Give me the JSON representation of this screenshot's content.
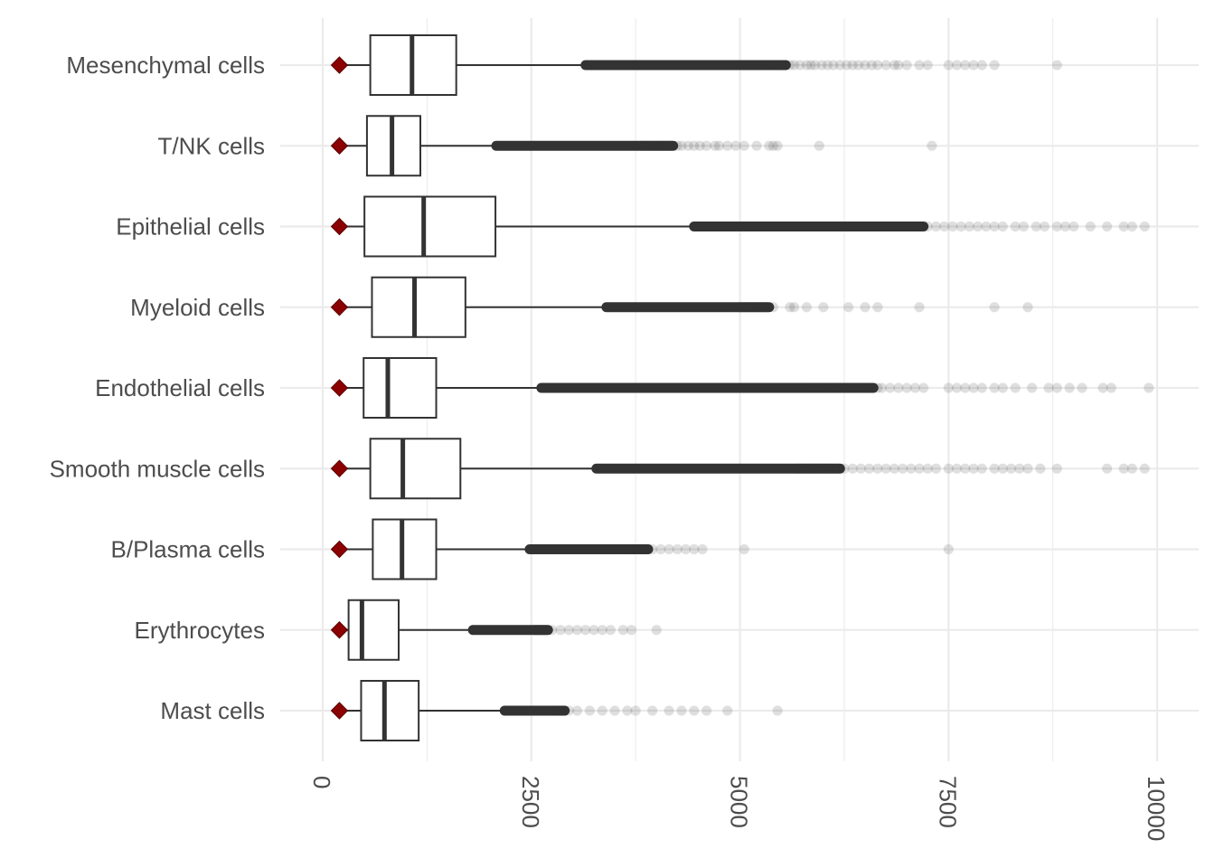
{
  "chart_data": {
    "type": "boxplot",
    "title": "",
    "xlabel": "",
    "ylabel": "",
    "orientation": "horizontal",
    "xlim": [
      -300,
      10200
    ],
    "x_ticks": [
      0,
      2500,
      5000,
      7500,
      10000
    ],
    "x_tick_labels": [
      "0",
      "2500",
      "5000",
      "7500",
      "10000"
    ],
    "x_tick_label_rotation": 90,
    "grid": true,
    "legend": "none",
    "colors": {
      "box_stroke": "#333333",
      "outlier": "#333333",
      "marker": "#8b0000",
      "grid": "#ebebeb"
    },
    "categories": [
      "Mesenchymal cells",
      "T/NK cells",
      "Epithelial cells",
      "Myeloid cells",
      "Endothelial cells",
      "Smooth muscle cells",
      "B/Plasma cells",
      "Erythrocytes",
      "Mast cells"
    ],
    "boxes": [
      {
        "category": "Mesenchymal cells",
        "whisker_low": 200,
        "q1": 570,
        "median": 1070,
        "q3": 1600,
        "whisker_high": 3150,
        "marker": 200,
        "outliers_dense": [
          3150,
          5550
        ],
        "outliers": [
          5600,
          5650,
          5720,
          5800,
          5850,
          5900,
          5980,
          6050,
          6120,
          6200,
          6280,
          6350,
          6420,
          6500,
          6580,
          6650,
          6750,
          6850,
          6900,
          7000,
          7150,
          7250,
          7500,
          7600,
          7700,
          7800,
          7900,
          8050,
          8800
        ]
      },
      {
        "category": "T/NK cells",
        "whisker_low": 200,
        "q1": 530,
        "median": 830,
        "q3": 1170,
        "whisker_high": 2080,
        "marker": 200,
        "outliers_dense": [
          2080,
          4200
        ],
        "outliers": [
          4250,
          4300,
          4380,
          4450,
          4520,
          4600,
          4700,
          4750,
          4850,
          4950,
          5050,
          5200,
          5350,
          5400,
          5450,
          5950,
          7300
        ]
      },
      {
        "category": "Epithelial cells",
        "whisker_low": 200,
        "q1": 500,
        "median": 1210,
        "q3": 2070,
        "whisker_high": 4450,
        "marker": 200,
        "outliers_dense": [
          4450,
          7200
        ],
        "outliers": [
          7250,
          7350,
          7450,
          7550,
          7650,
          7750,
          7850,
          7950,
          8050,
          8150,
          8300,
          8400,
          8550,
          8650,
          8800,
          8900,
          9000,
          9200,
          9400,
          9600,
          9700,
          9850
        ]
      },
      {
        "category": "Myeloid cells",
        "whisker_low": 200,
        "q1": 590,
        "median": 1100,
        "q3": 1710,
        "whisker_high": 3400,
        "marker": 200,
        "outliers_dense": [
          3400,
          5350
        ],
        "outliers": [
          5400,
          5600,
          5650,
          5800,
          6000,
          6300,
          6500,
          6650,
          7150,
          8050,
          8450
        ]
      },
      {
        "category": "Endothelial cells",
        "whisker_low": 200,
        "q1": 490,
        "median": 780,
        "q3": 1360,
        "whisker_high": 2620,
        "marker": 200,
        "outliers_dense": [
          2620,
          6600
        ],
        "outliers": [
          6650,
          6700,
          6800,
          6900,
          7000,
          7100,
          7200,
          7500,
          7600,
          7700,
          7800,
          7900,
          8050,
          8150,
          8300,
          8500,
          8700,
          8800,
          8950,
          9100,
          9350,
          9450,
          9900
        ]
      },
      {
        "category": "Smooth muscle cells",
        "whisker_low": 200,
        "q1": 570,
        "median": 960,
        "q3": 1650,
        "whisker_high": 3280,
        "marker": 200,
        "outliers_dense": [
          3280,
          6200
        ],
        "outliers": [
          6250,
          6350,
          6450,
          6550,
          6650,
          6750,
          6850,
          6950,
          7050,
          7150,
          7250,
          7350,
          7500,
          7600,
          7700,
          7800,
          7900,
          8050,
          8150,
          8250,
          8350,
          8450,
          8600,
          8800,
          9400,
          9600,
          9700,
          9850
        ]
      },
      {
        "category": "B/Plasma cells",
        "whisker_low": 200,
        "q1": 600,
        "median": 950,
        "q3": 1360,
        "whisker_high": 2480,
        "marker": 200,
        "outliers_dense": [
          2480,
          3900
        ],
        "outliers": [
          3950,
          4050,
          4150,
          4250,
          4350,
          4450,
          4550,
          5050,
          7500
        ]
      },
      {
        "category": "Erythrocytes",
        "whisker_low": 200,
        "q1": 310,
        "median": 470,
        "q3": 910,
        "whisker_high": 1800,
        "marker": 200,
        "outliers_dense": [
          1800,
          2700
        ],
        "outliers": [
          2750,
          2850,
          2950,
          3050,
          3150,
          3250,
          3350,
          3450,
          3600,
          3700,
          4000
        ]
      },
      {
        "category": "Mast cells",
        "whisker_low": 200,
        "q1": 460,
        "median": 740,
        "q3": 1150,
        "whisker_high": 2180,
        "marker": 200,
        "outliers_dense": [
          2180,
          2900
        ],
        "outliers": [
          2950,
          3050,
          3200,
          3350,
          3500,
          3650,
          3750,
          3950,
          4150,
          4300,
          4450,
          4600,
          4850,
          5450
        ]
      }
    ]
  }
}
